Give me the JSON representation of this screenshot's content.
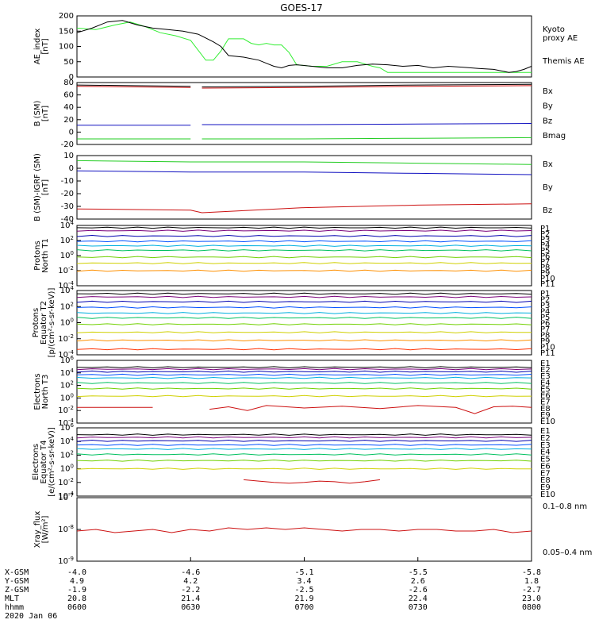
{
  "title": "GOES-17",
  "colors": {
    "black": "#000000",
    "green": "#22cc22",
    "lime": "#33ee33",
    "blue": "#1010c0",
    "red": "#cc1010",
    "p1": "#000000",
    "p2": "#7a007a",
    "p3": "#0000b0",
    "p4": "#0050ff",
    "p5": "#00b0e0",
    "p6": "#00c060",
    "p7": "#70d000",
    "p8": "#d0d000",
    "p9": "#ff9000",
    "p10": "#ff3000",
    "p11": "#a00000"
  },
  "chart_data": [
    {
      "type": "line",
      "panel": "ae",
      "ylabel": [
        "AE_index",
        "[nT]"
      ],
      "ylim": [
        0,
        200
      ],
      "yticks": [
        "0",
        "50",
        "100",
        "150",
        "200"
      ],
      "series": [
        {
          "name": "Kyoto proxy AE",
          "legend": [
            "Kyoto",
            "proxy AE"
          ],
          "color": "lime",
          "x": [
            0,
            5,
            10,
            14,
            18,
            22,
            26,
            30,
            34,
            36,
            38,
            40,
            44,
            46,
            48,
            50,
            52,
            54,
            56,
            58,
            62,
            66,
            70,
            74,
            78,
            80,
            82,
            86,
            90,
            100,
            110,
            120
          ],
          "y": [
            160,
            155,
            170,
            180,
            165,
            145,
            135,
            120,
            55,
            55,
            85,
            125,
            125,
            110,
            105,
            110,
            105,
            105,
            80,
            40,
            35,
            35,
            50,
            50,
            35,
            30,
            15,
            15,
            15,
            15,
            15,
            15
          ]
        },
        {
          "name": "Themis AE",
          "legend": [
            "Themis AE"
          ],
          "color": "black",
          "x": [
            0,
            4,
            8,
            12,
            16,
            20,
            24,
            28,
            32,
            36,
            38,
            40,
            44,
            48,
            50,
            52,
            54,
            56,
            58,
            62,
            66,
            70,
            74,
            78,
            82,
            86,
            90,
            94,
            98,
            102,
            106,
            110,
            114,
            116,
            118,
            120
          ],
          "y": [
            145,
            160,
            180,
            185,
            170,
            160,
            155,
            150,
            140,
            115,
            100,
            70,
            65,
            55,
            45,
            35,
            30,
            38,
            40,
            35,
            30,
            30,
            38,
            42,
            40,
            35,
            38,
            30,
            35,
            32,
            28,
            25,
            15,
            18,
            25,
            35
          ]
        }
      ]
    },
    {
      "type": "line",
      "panel": "b_sm",
      "ylabel": [
        "B (SM)",
        "[nT]"
      ],
      "ylim": [
        -20,
        80
      ],
      "yticks": [
        "-20",
        "0",
        "20",
        "40",
        "60",
        "80"
      ],
      "legend_right": [
        {
          "label": "Bx",
          "color": "blue"
        },
        {
          "label": "By",
          "color": "green"
        },
        {
          "label": "Bz",
          "color": "red"
        },
        {
          "label": "Bmag",
          "color": "black"
        }
      ],
      "gap": [
        30.5,
        32.5
      ],
      "series": [
        {
          "name": "Bmag",
          "color": "black",
          "x": [
            0,
            30,
            33,
            60,
            90,
            120
          ],
          "y": [
            76,
            74,
            73,
            74,
            76,
            77
          ]
        },
        {
          "name": "Bz",
          "color": "red",
          "x": [
            0,
            30,
            33,
            60,
            90,
            120
          ],
          "y": [
            74,
            72,
            71,
            72,
            74,
            75
          ]
        },
        {
          "name": "Bx",
          "color": "blue",
          "x": [
            0,
            30,
            33,
            60,
            90,
            120
          ],
          "y": [
            11,
            11,
            12,
            12,
            13,
            14
          ]
        },
        {
          "name": "By",
          "color": "green",
          "x": [
            0,
            30,
            33,
            60,
            90,
            120
          ],
          "y": [
            -11,
            -11,
            -11,
            -11,
            -10,
            -9
          ]
        }
      ]
    },
    {
      "type": "line",
      "panel": "b_igrf",
      "ylabel": [
        "B (SM)-IGRF (SM)",
        "[nT]"
      ],
      "ylim": [
        -40,
        10
      ],
      "yticks": [
        "-40",
        "-30",
        "-20",
        "-10",
        "0",
        "10"
      ],
      "legend_right": [
        {
          "label": "Bx",
          "color": "blue"
        },
        {
          "label": "By",
          "color": "green"
        },
        {
          "label": "Bz",
          "color": "red"
        }
      ],
      "series": [
        {
          "name": "By",
          "color": "green",
          "x": [
            0,
            30,
            33,
            60,
            90,
            120
          ],
          "y": [
            6,
            5,
            5,
            5,
            4,
            3
          ]
        },
        {
          "name": "Bx",
          "color": "blue",
          "x": [
            0,
            30,
            33,
            60,
            90,
            120
          ],
          "y": [
            -2,
            -3,
            -3,
            -3,
            -4,
            -5
          ]
        },
        {
          "name": "Bz",
          "color": "red",
          "x": [
            0,
            30,
            33,
            60,
            90,
            120
          ],
          "y": [
            -32,
            -33,
            -35,
            -31,
            -29,
            -28
          ]
        }
      ]
    },
    {
      "type": "line",
      "panel": "protons_t1",
      "scale": "log",
      "ylabel": [
        "Protons",
        "North T1"
      ],
      "ylim_exp": [
        -4,
        4
      ],
      "yticks_exp": [
        -4,
        -2,
        0,
        2,
        4
      ],
      "channel_labels": [
        "P1",
        "P2",
        "P3",
        "P4",
        "P5",
        "P6",
        "P7",
        "P8",
        "P9",
        "P10",
        "P11"
      ],
      "channel_colors": [
        "p1",
        "p2",
        "p3",
        "p4",
        "p5",
        "p6",
        "p7",
        "p8",
        "p9",
        "p10",
        "p11"
      ],
      "levels_exp": [
        3.7,
        3.3,
        2.6,
        1.9,
        1.3,
        0.7,
        -0.2,
        -1.0,
        -2.0,
        null,
        null
      ]
    },
    {
      "type": "line",
      "panel": "protons_t2",
      "scale": "log",
      "ylabel": [
        "Protons",
        "Equator T2",
        "[p/(cm²-s-sr-keV)]"
      ],
      "ylim_exp": [
        -4,
        4
      ],
      "yticks_exp": [
        -4,
        -2,
        0,
        2,
        4
      ],
      "channel_labels": [
        "P1",
        "P2",
        "P3",
        "P4",
        "P5",
        "P6",
        "P7",
        "P8",
        "P9",
        "P10",
        "P11"
      ],
      "channel_colors": [
        "p1",
        "p2",
        "p3",
        "p4",
        "p5",
        "p6",
        "p7",
        "p8",
        "p9",
        "p10",
        "p11"
      ],
      "levels_exp": [
        3.6,
        3.2,
        2.6,
        1.9,
        1.2,
        0.6,
        -0.2,
        -1.2,
        -2.2,
        -3.3,
        null
      ]
    },
    {
      "type": "line",
      "panel": "electrons_t3",
      "scale": "log",
      "ylabel": [
        "Electrons",
        "North T3"
      ],
      "ylim_exp": [
        -4,
        6
      ],
      "yticks_exp": [
        -4,
        -2,
        0,
        2,
        4,
        6
      ],
      "channel_labels": [
        "E1",
        "E2",
        "E3",
        "E4",
        "E5",
        "E6",
        "E7",
        "E8",
        "E9",
        "E10"
      ],
      "channel_colors": [
        "p1",
        "p2",
        "p3",
        "p4",
        "p5",
        "p6",
        "p7",
        "p8",
        "p9",
        "p11"
      ],
      "levels_exp": [
        4.9,
        4.6,
        4.2,
        3.7,
        3.2,
        2.4,
        1.5,
        0.3,
        null,
        null
      ],
      "scatter_red_exp": {
        "x": [
          0,
          10,
          20,
          25,
          35,
          40,
          45,
          50,
          60,
          70,
          80,
          90,
          100,
          105,
          110,
          115,
          120
        ],
        "y": [
          -1.5,
          -1.5,
          -1.5,
          null,
          -1.8,
          -1.4,
          -2.0,
          -1.2,
          -1.6,
          -1.3,
          -1.7,
          -1.2,
          -1.5,
          -2.5,
          -1.4,
          -1.3,
          -1.5
        ]
      }
    },
    {
      "type": "line",
      "panel": "electrons_t4",
      "scale": "log",
      "ylabel": [
        "Electrons",
        "Equator T4",
        "[e/(cm²-s-sr-keV)]"
      ],
      "ylim_exp": [
        -4,
        6
      ],
      "yticks_exp": [
        -4,
        -2,
        0,
        2,
        4,
        6
      ],
      "channel_labels": [
        "E1",
        "E2",
        "E3",
        "E4",
        "E5",
        "E6",
        "E7",
        "E8",
        "E9",
        "E10"
      ],
      "channel_colors": [
        "p1",
        "p2",
        "p3",
        "p4",
        "p5",
        "p6",
        "p7",
        "p8",
        "p9",
        "p11"
      ],
      "levels_exp": [
        5.0,
        4.6,
        4.1,
        3.5,
        2.9,
        2.1,
        1.2,
        0.0,
        null,
        null
      ],
      "scatter_red_exp": {
        "x": [
          44,
          48,
          52,
          56,
          60,
          64,
          68,
          72,
          76,
          80
        ],
        "y": [
          -1.6,
          -1.8,
          -2.0,
          -2.1,
          -2.0,
          -1.8,
          -1.9,
          -2.1,
          -1.9,
          -1.6
        ]
      }
    },
    {
      "type": "line",
      "panel": "xray",
      "scale": "log",
      "ylabel": [
        "Xray_flux",
        "[W/m²]"
      ],
      "ylim_exp": [
        -9,
        -7
      ],
      "yticks_exp": [
        -9,
        -8,
        -7
      ],
      "legend_right": [
        {
          "label": "0.1–0.8 nm",
          "color": "red"
        },
        {
          "label": "0.05–0.4 nm",
          "color": "blue"
        }
      ],
      "series": [
        {
          "name": "0.1–0.8 nm",
          "color": "red",
          "x": [
            0,
            5,
            10,
            15,
            20,
            25,
            30,
            35,
            40,
            45,
            50,
            55,
            60,
            65,
            70,
            75,
            80,
            85,
            90,
            95,
            100,
            105,
            110,
            115,
            120
          ],
          "y": [
            -8.05,
            -8.0,
            -8.1,
            -8.05,
            -8.0,
            -8.1,
            -8.0,
            -8.05,
            -7.95,
            -8.0,
            -7.95,
            -8.0,
            -7.95,
            -8.0,
            -8.05,
            -8.0,
            -8.0,
            -8.05,
            -8.0,
            -8.0,
            -8.05,
            -8.05,
            -8.0,
            -8.1,
            -8.05
          ]
        }
      ]
    }
  ],
  "xaxis": {
    "rows": [
      {
        "label": "X-GSM",
        "values": [
          "-4.0",
          "-4.6",
          "-5.1",
          "-5.5",
          "-5.8"
        ]
      },
      {
        "label": "Y-GSM",
        "values": [
          "4.9",
          "4.2",
          "3.4",
          "2.6",
          "1.8"
        ]
      },
      {
        "label": "Z-GSM",
        "values": [
          "-1.9",
          "-2.2",
          "-2.5",
          "-2.6",
          "-2.7"
        ]
      },
      {
        "label": "MLT",
        "values": [
          "20.8",
          "21.4",
          "21.9",
          "22.4",
          "23.0"
        ]
      },
      {
        "label": "hhmm",
        "values": [
          "0600",
          "0630",
          "0700",
          "0730",
          "0800"
        ]
      }
    ],
    "date": "2020 Jan 06",
    "x_minutes": [
      0,
      30,
      60,
      90,
      120
    ]
  }
}
